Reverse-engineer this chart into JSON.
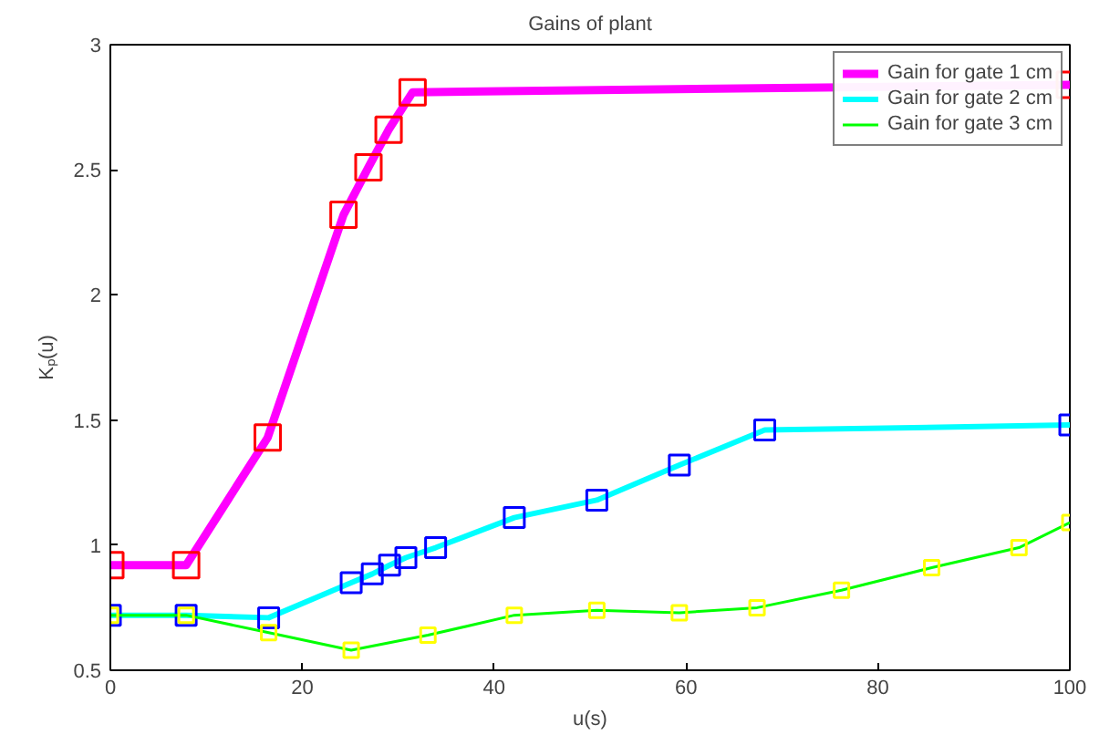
{
  "chart_data": {
    "type": "line",
    "title": "Gains of plant",
    "xlabel": "u(s)",
    "ylabel": "Kₚ(u)",
    "xlim": [
      0,
      100
    ],
    "ylim": [
      0.5,
      3
    ],
    "xticks": [
      0,
      20,
      40,
      60,
      80,
      100
    ],
    "yticks": [
      0.5,
      1,
      1.5,
      2,
      2.5,
      3
    ],
    "grid": false,
    "legend": "top right",
    "marker": "square",
    "line_style": "solid",
    "series": [
      {
        "name": "Gain for gate 1 cm",
        "color": "#ff00ff",
        "colors": [
          "#ff0000",
          "#ff0000",
          "#ff0000",
          "#ff0000",
          "#ff0000",
          "#ff0000",
          "#ff0000",
          "#ff0000"
        ],
        "x": [
          0,
          7.9,
          16.4,
          24.3,
          26.9,
          29.0,
          31.5,
          100
        ],
        "values": [
          0.92,
          0.92,
          1.43,
          2.32,
          2.51,
          2.66,
          2.81,
          2.84
        ]
      },
      {
        "name": "Gain for gate 2 cm",
        "color": "#00ffff",
        "colors": [
          "#0000ff",
          "#0000ff",
          "#0000ff",
          "#0000ff",
          "#0000ff",
          "#0000ff",
          "#0000ff",
          "#0000ff",
          "#0000ff",
          "#0000ff",
          "#0000ff",
          "#0000ff",
          "#0000ff"
        ],
        "x": [
          0,
          7.9,
          16.5,
          25.1,
          27.3,
          29.1,
          30.8,
          33.9,
          42.1,
          50.7,
          59.3,
          68.2,
          100
        ],
        "values": [
          0.72,
          0.72,
          0.71,
          0.85,
          0.885,
          0.92,
          0.95,
          0.99,
          1.11,
          1.18,
          1.32,
          1.46,
          1.48
        ]
      },
      {
        "name": "Gain for gate 3 cm",
        "color": "#00ff00",
        "colors": [
          "#ffff00",
          "#ffff00",
          "#ffff00",
          "#ffff00",
          "#ffff00",
          "#ffff00",
          "#ffff00",
          "#ffff00",
          "#ffff00",
          "#ffff00",
          "#ffff00",
          "#ffff00",
          "#ffff00"
        ],
        "x": [
          0,
          7.9,
          16.5,
          25.1,
          33.1,
          42.1,
          50.7,
          59.3,
          67.4,
          76.2,
          85.6,
          94.7,
          100
        ],
        "values": [
          0.72,
          0.72,
          0.65,
          0.58,
          0.64,
          0.72,
          0.74,
          0.73,
          0.75,
          0.82,
          0.91,
          0.99,
          1.09
        ]
      }
    ]
  }
}
